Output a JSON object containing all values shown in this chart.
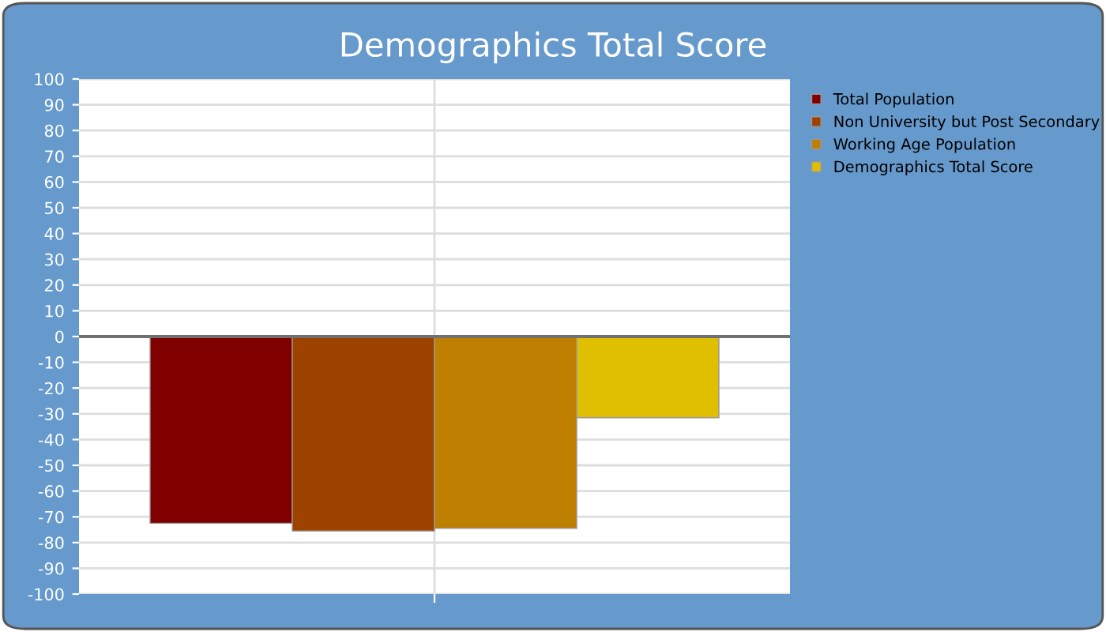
{
  "chart_data": {
    "type": "bar",
    "title": "Demographics Total Score",
    "categories": [
      null
    ],
    "series": [
      {
        "name": "Total Population",
        "color": "#800000",
        "values": [
          -72.5
        ]
      },
      {
        "name": "Non University but Post Secondary",
        "color": "#9e4200",
        "values": [
          -75.5
        ]
      },
      {
        "name": "Working Age Population",
        "color": "#bf7f00",
        "values": [
          -74.5
        ]
      },
      {
        "name": "Demographics Total Score",
        "color": "#dfbf00",
        "values": [
          -31.5
        ]
      }
    ],
    "ylim": [
      -100,
      100
    ],
    "yticks": [
      -100,
      -90,
      -80,
      -70,
      -60,
      -50,
      -40,
      -30,
      -20,
      -10,
      0,
      10,
      20,
      30,
      40,
      50,
      60,
      70,
      80,
      90,
      100
    ],
    "ref_lines": [
      {
        "axis": "y",
        "value": 0,
        "color": "#707070"
      }
    ],
    "grid": true,
    "legend": "top right"
  }
}
